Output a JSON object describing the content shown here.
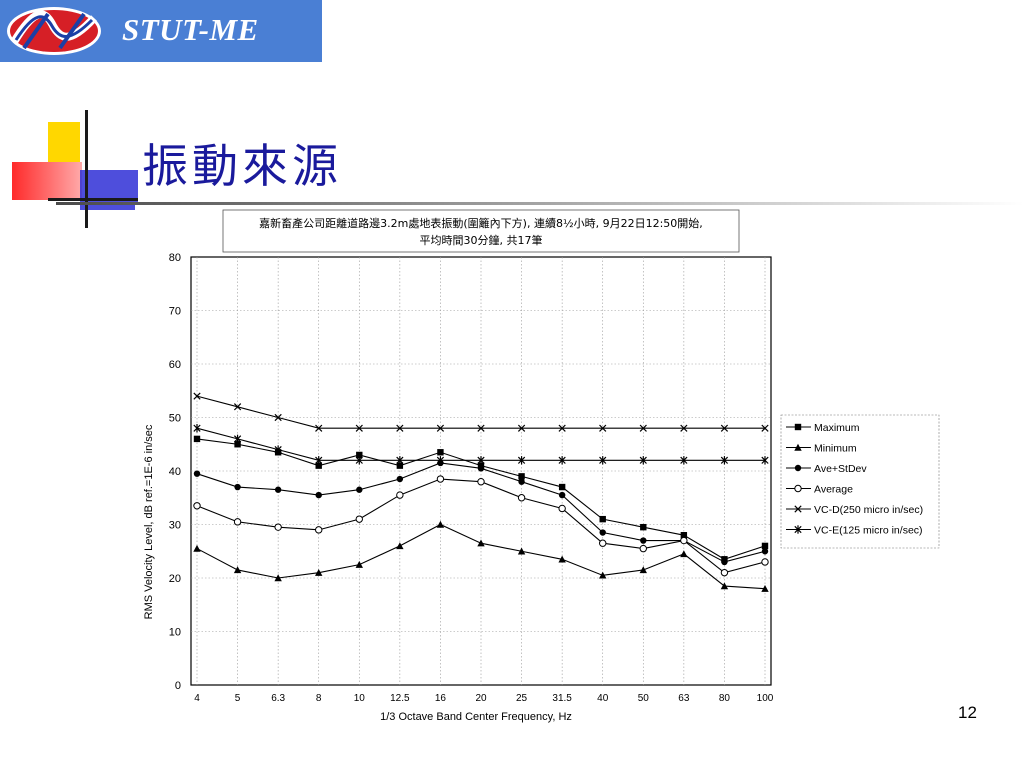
{
  "header": {
    "logo_text": "STUT-ME",
    "brand_color": "#4a7fd4"
  },
  "slide": {
    "title": "振動來源",
    "title_color": "#1a1a9c",
    "page_number": "12"
  },
  "chart_data": {
    "type": "line",
    "title_line1": "嘉新畜產公司距離道路邊3.2m處地表振動(圍籬內下方), 連續8½小時, 9月22日12:50開始,",
    "title_line2": "平均時間30分鐘, 共17筆",
    "xlabel": "1/3 Octave Band Center Frequency, Hz",
    "ylabel": "RMS Velocity Level, dB ref.=1E-6 in/sec",
    "categories": [
      "4",
      "5",
      "6.3",
      "8",
      "10",
      "12.5",
      "16",
      "20",
      "25",
      "31.5",
      "40",
      "50",
      "63",
      "80",
      "100"
    ],
    "ylim": [
      0,
      80
    ],
    "yticks": [
      "0",
      "10",
      "20",
      "30",
      "40",
      "50",
      "60",
      "70",
      "80"
    ],
    "grid": true,
    "legend_position": "right",
    "series": [
      {
        "name": "Maximum",
        "marker": "square-filled",
        "values": [
          46,
          45,
          43.5,
          41,
          43,
          41,
          43.5,
          41,
          39,
          37,
          31,
          29.5,
          28,
          23.5,
          26
        ]
      },
      {
        "name": "Minimum",
        "marker": "triangle-filled",
        "values": [
          25.5,
          21.5,
          20,
          21,
          22.5,
          26,
          30,
          26.5,
          25,
          23.5,
          20.5,
          21.5,
          24.5,
          18.5,
          18
        ]
      },
      {
        "name": "Ave+StDev",
        "marker": "circle-filled",
        "values": [
          39.5,
          37,
          36.5,
          35.5,
          36.5,
          38.5,
          41.5,
          40.5,
          38,
          35.5,
          28.5,
          27,
          27,
          23,
          25
        ]
      },
      {
        "name": "Average",
        "marker": "circle-open",
        "values": [
          33.5,
          30.5,
          29.5,
          29,
          31,
          35.5,
          38.5,
          38,
          35,
          33,
          26.5,
          25.5,
          27,
          21,
          23
        ]
      },
      {
        "name": "VC-D(250 micro in/sec)",
        "marker": "x",
        "values": [
          54,
          52,
          50,
          48,
          48,
          48,
          48,
          48,
          48,
          48,
          48,
          48,
          48,
          48,
          48
        ]
      },
      {
        "name": "VC-E(125 micro in/sec)",
        "marker": "star",
        "values": [
          48,
          46,
          44,
          42,
          42,
          42,
          42,
          42,
          42,
          42,
          42,
          42,
          42,
          42,
          42
        ]
      }
    ]
  }
}
